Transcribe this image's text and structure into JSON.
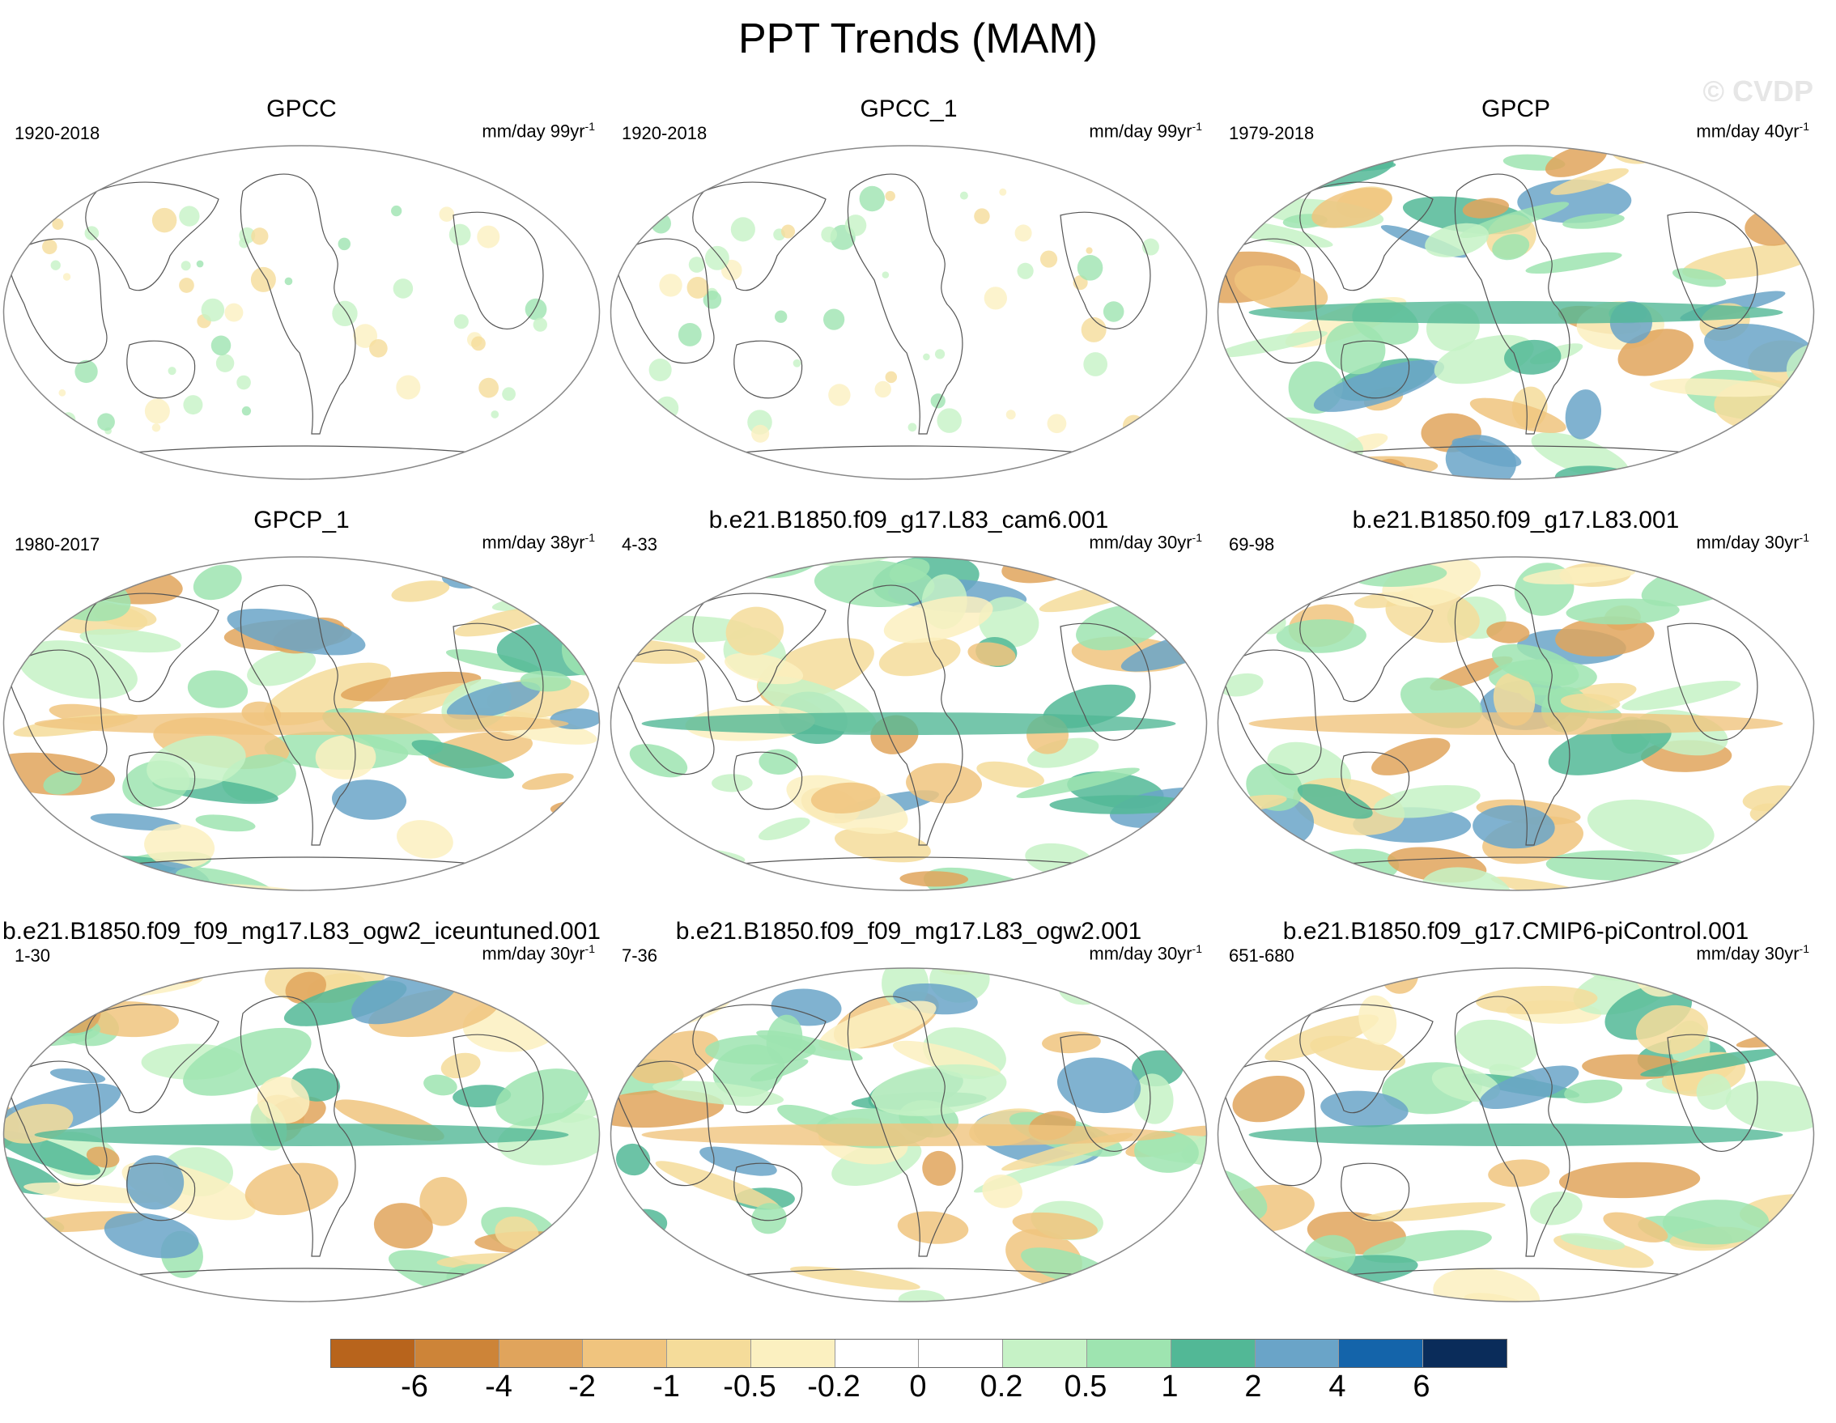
{
  "title": "PPT Trends (MAM)",
  "watermark": "© CVDP",
  "colorbar": {
    "colors": [
      "#b8641c",
      "#cd8438",
      "#e0a45c",
      "#f0c47e",
      "#f5dc9a",
      "#fbf0c0",
      "#ffffff",
      "#ffffff",
      "#c6f2c6",
      "#9ee4b0",
      "#52b896",
      "#6aa4c8",
      "#1464aa",
      "#0a2c5a"
    ],
    "labels": [
      "-6",
      "-4",
      "-2",
      "-1",
      "-0.5",
      "-0.2",
      "0",
      "0.2",
      "0.5",
      "1",
      "2",
      "4",
      "6"
    ]
  },
  "panels": [
    {
      "title": "GPCC",
      "period": "1920-2018",
      "units": "mm/day 99yr",
      "units_exp": "-1",
      "style": "land"
    },
    {
      "title": "GPCC_1",
      "period": "1920-2018",
      "units": "mm/day 99yr",
      "units_exp": "-1",
      "style": "land"
    },
    {
      "title": "GPCP",
      "period": "1979-2018",
      "units": "mm/day 40yr",
      "units_exp": "-1",
      "style": "full"
    },
    {
      "title": "GPCP_1",
      "period": "1980-2017",
      "units": "mm/day 38yr",
      "units_exp": "-1",
      "style": "full"
    },
    {
      "title": "b.e21.B1850.f09_g17.L83_cam6.001",
      "period": "4-33",
      "units": "mm/day 30yr",
      "units_exp": "-1",
      "style": "full"
    },
    {
      "title": "b.e21.B1850.f09_g17.L83.001",
      "period": "69-98",
      "units": "mm/day 30yr",
      "units_exp": "-1",
      "style": "full"
    },
    {
      "title": "b.e21.B1850.f09_f09_mg17.L83_ogw2_iceuntuned.001",
      "period": "1-30",
      "units": "mm/day 30yr",
      "units_exp": "-1",
      "style": "full"
    },
    {
      "title": "b.e21.B1850.f09_f09_mg17.L83_ogw2.001",
      "period": "7-36",
      "units": "mm/day 30yr",
      "units_exp": "-1",
      "style": "full"
    },
    {
      "title": "b.e21.B1850.f09_g17.CMIP6-piControl.001",
      "period": "651-680",
      "units": "mm/day 30yr",
      "units_exp": "-1",
      "style": "full"
    }
  ]
}
